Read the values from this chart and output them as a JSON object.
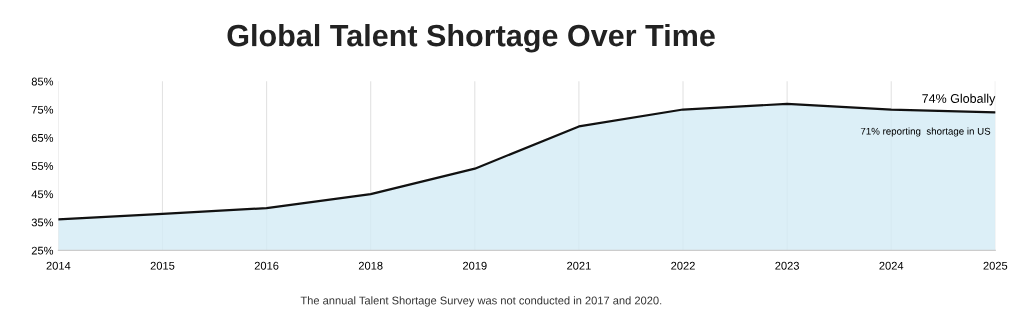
{
  "chart_data": {
    "type": "area",
    "title": "Global Talent Shortage Over Time",
    "categories": [
      "2014",
      "2015",
      "2016",
      "2018",
      "2019",
      "2021",
      "2022",
      "2023",
      "2024",
      "2025"
    ],
    "series": [
      {
        "color": "#d3ebf5",
        "values": [
          36,
          38,
          40,
          45,
          54,
          69,
          75,
          77,
          75,
          74
        ]
      }
    ],
    "ylim": [
      25,
      85
    ],
    "yticks": [
      {
        "value": 25,
        "label": "25%"
      },
      {
        "value": 35,
        "label": "35%"
      },
      {
        "value": 45,
        "label": "45%"
      },
      {
        "value": 55,
        "label": "55%"
      },
      {
        "value": 65,
        "label": "65%"
      },
      {
        "value": 75,
        "label": "75%"
      },
      {
        "value": 85,
        "label": "85%"
      }
    ],
    "grid": "x",
    "annotations": [
      {
        "text": "74% Globally",
        "x": "2025",
        "y": 74
      },
      "71% reporting  shortage in US",
      "The annual Talent Shortage Survey was not conducted in 2017 and 2020."
    ]
  }
}
